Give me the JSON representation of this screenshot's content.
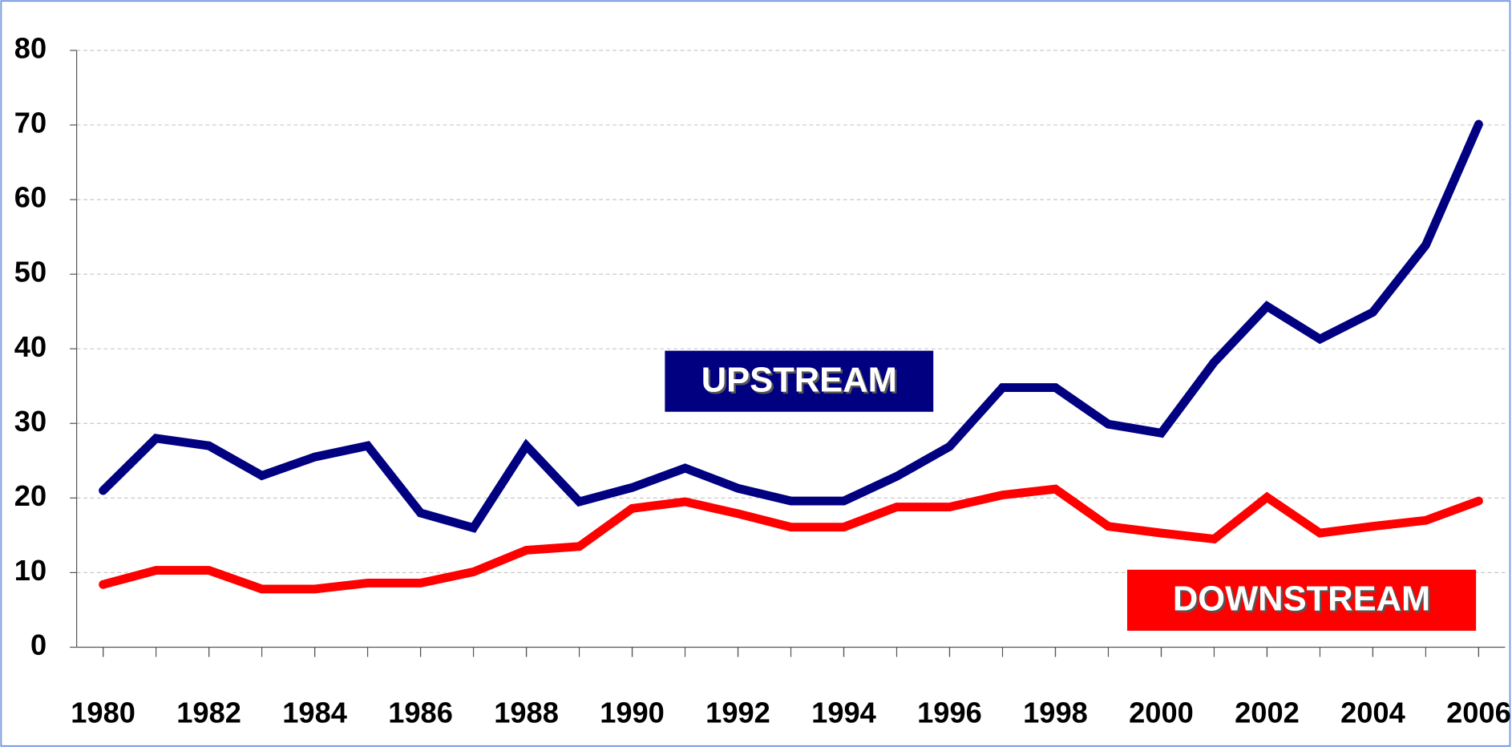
{
  "chart_data": {
    "type": "line",
    "x": [
      1980,
      1981,
      1982,
      1983,
      1984,
      1985,
      1986,
      1987,
      1988,
      1989,
      1990,
      1991,
      1992,
      1993,
      1994,
      1995,
      1996,
      1997,
      1998,
      1999,
      2000,
      2001,
      2002,
      2003,
      2004,
      2005,
      2006
    ],
    "series": [
      {
        "name": "UPSTREAM",
        "color": "#000080",
        "values": [
          21,
          28,
          27,
          23,
          25.5,
          27,
          18,
          16,
          27,
          19.5,
          21.4,
          24,
          21.3,
          19.6,
          19.6,
          22.9,
          26.9,
          34.8,
          34.8,
          29.9,
          28.7,
          38.2,
          45.7,
          41.3,
          44.9,
          53.9,
          70.1
        ]
      },
      {
        "name": "DOWNSTREAM",
        "color": "#ff0000",
        "values": [
          8.4,
          10.3,
          10.3,
          7.8,
          7.8,
          8.6,
          8.6,
          10.1,
          13,
          13.5,
          18.6,
          19.5,
          17.9,
          16.1,
          16.1,
          18.8,
          18.8,
          20.4,
          21.2,
          16.2,
          15.3,
          14.5,
          20.1,
          15.3,
          16.2,
          17,
          19.6
        ]
      }
    ],
    "xlim": [
      1979.5,
      2006.5
    ],
    "xticks": [
      1980,
      1982,
      1984,
      1986,
      1988,
      1990,
      1992,
      1994,
      1996,
      1998,
      2000,
      2002,
      2004,
      2006
    ],
    "ylim": [
      0,
      80
    ],
    "yticks": [
      0,
      10,
      20,
      30,
      40,
      50,
      60,
      70,
      80
    ],
    "grid": true
  }
}
